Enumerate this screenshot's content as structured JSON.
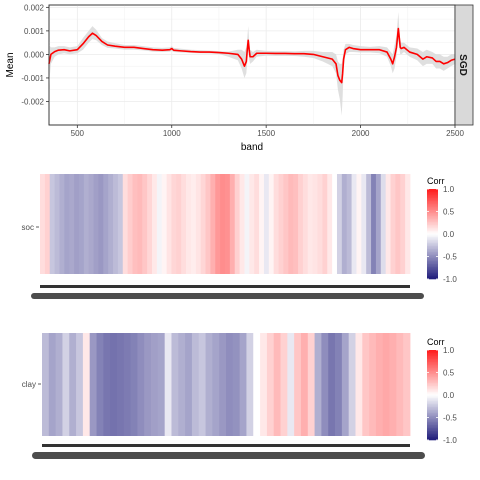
{
  "chart_data": [
    {
      "type": "line",
      "xlabel": "band",
      "ylabel": "Mean",
      "facet_label": "SGD",
      "xlim": [
        350,
        2500
      ],
      "ylim": [
        -0.003,
        0.0021
      ],
      "x_ticks": [
        500,
        1000,
        1500,
        2000,
        2500
      ],
      "x_tick_labels": [
        "500",
        "1000",
        "1500",
        "2000",
        "2500"
      ],
      "y_ticks": [
        -0.002,
        -0.001,
        0.0,
        0.001,
        0.002
      ],
      "y_tick_labels": [
        "-0.002",
        "-0.001",
        "0.000",
        "0.001",
        "0.002"
      ],
      "grid": true,
      "colors": {
        "line": "#ff0000",
        "ribbon": "#d9d9d9",
        "strip": "#d9d9d9"
      },
      "x": [
        350,
        360,
        380,
        400,
        430,
        460,
        500,
        530,
        560,
        580,
        600,
        630,
        660,
        700,
        750,
        800,
        850,
        900,
        950,
        990,
        1000,
        1010,
        1050,
        1100,
        1150,
        1200,
        1250,
        1300,
        1350,
        1370,
        1385,
        1395,
        1400,
        1405,
        1410,
        1415,
        1430,
        1450,
        1500,
        1550,
        1600,
        1650,
        1700,
        1750,
        1800,
        1850,
        1870,
        1880,
        1890,
        1900,
        1905,
        1910,
        1920,
        1940,
        1960,
        2000,
        2050,
        2100,
        2140,
        2160,
        2170,
        2180,
        2190,
        2200,
        2205,
        2210,
        2215,
        2230,
        2260,
        2300,
        2330,
        2350,
        2380,
        2400,
        2420,
        2440,
        2460,
        2480,
        2500
      ],
      "mean": [
        -0.0004,
        0.0,
        0.00012,
        0.00018,
        0.0002,
        0.00015,
        0.0002,
        0.00045,
        0.00075,
        0.0009,
        0.0008,
        0.00055,
        0.0004,
        0.00035,
        0.0003,
        0.0003,
        0.00025,
        0.0002,
        0.00018,
        0.0002,
        0.00025,
        0.00018,
        0.00015,
        0.00012,
        0.0001,
        0.0001,
        8e-05,
        5e-05,
        0.0,
        -0.0002,
        -0.0005,
        -0.0003,
        0.0002,
        0.0006,
        0.0002,
        -0.0001,
        -0.0001,
        5e-05,
        5e-05,
        4e-05,
        4e-05,
        3e-05,
        3e-05,
        0.0,
        -0.0001,
        -0.0002,
        -0.0004,
        -0.0009,
        -0.0011,
        -0.0012,
        -0.0008,
        -0.0002,
        0.0002,
        0.0003,
        0.00025,
        0.0002,
        0.0002,
        0.0002,
        0.0001,
        -0.0002,
        -0.0004,
        -0.0001,
        0.0003,
        0.0011,
        0.0007,
        0.0003,
        0.00025,
        0.0003,
        0.0001,
        0.0,
        -0.0002,
        -0.0001,
        -0.00015,
        -0.0003,
        -0.0003,
        -0.0004,
        -0.00035,
        -0.00025,
        -0.0002
      ],
      "lower": [
        -0.0013,
        -0.0004,
        -0.0001,
        0.0,
        5e-05,
        0.0,
        5e-05,
        0.0002,
        0.0005,
        0.00065,
        0.0006,
        0.0004,
        0.00028,
        0.00025,
        0.0002,
        0.0002,
        0.00017,
        0.00012,
        0.0001,
        0.00012,
        0.00015,
        0.0001,
        8e-05,
        6e-05,
        5e-05,
        4e-05,
        2e-05,
        -0.0001,
        -0.00025,
        -0.0006,
        -0.001,
        -0.0008,
        -0.0003,
        0.0002,
        -0.0002,
        -0.0004,
        -0.0003,
        -0.0001,
        -5e-05,
        -6e-05,
        -6e-05,
        -7e-05,
        -0.0001,
        -0.00015,
        -0.0003,
        -0.0005,
        -0.0008,
        -0.0015,
        -0.0019,
        -0.0026,
        -0.0018,
        -0.0006,
        0.0,
        0.0001,
        0.0001,
        8e-05,
        8e-05,
        5e-05,
        -0.0001,
        -0.0005,
        -0.0008,
        -0.0006,
        -0.0001,
        0.0006,
        0.0003,
        0.0,
        0.0,
        0.0001,
        -0.0001,
        -0.00025,
        -0.0005,
        -0.0004,
        -0.0004,
        -0.0006,
        -0.0006,
        -0.0007,
        -0.0006,
        -0.0005,
        -0.0004
      ],
      "upper": [
        0.0004,
        0.0003,
        0.0003,
        0.00035,
        0.00035,
        0.0003,
        0.00035,
        0.0007,
        0.001,
        0.0012,
        0.00105,
        0.0007,
        0.00055,
        0.00048,
        0.0004,
        0.0004,
        0.00035,
        0.0003,
        0.00028,
        0.0003,
        0.00035,
        0.00028,
        0.00024,
        0.0002,
        0.00018,
        0.00016,
        0.00014,
        0.00012,
        0.0002,
        0.0002,
        0.0001,
        0.0003,
        0.0007,
        0.0012,
        0.0006,
        0.0002,
        0.0001,
        0.0002,
        0.00015,
        0.00014,
        0.00014,
        0.00013,
        0.00015,
        0.00015,
        0.0001,
        0.0001,
        0.0,
        -0.0003,
        -0.0004,
        -0.0004,
        -0.0002,
        0.0002,
        0.00045,
        0.00045,
        0.0004,
        0.00035,
        0.00032,
        0.00035,
        0.0003,
        0.0001,
        0.0,
        0.0004,
        0.0008,
        0.0018,
        0.0011,
        0.0006,
        0.0005,
        0.0005,
        0.0003,
        0.00025,
        0.0001,
        0.0002,
        0.0001,
        0.0,
        0.0,
        -0.0001,
        -0.0001,
        0.0,
        0.0
      ]
    },
    {
      "type": "heatmap",
      "row_label": "soc",
      "legend_title": "Corr",
      "legend_ticks": [
        1.0,
        0.5,
        0.0,
        -0.5,
        -1.0
      ],
      "legend_tick_labels": [
        "1.0",
        "0.5",
        "0.0",
        "-0.5",
        "-1.0"
      ],
      "color_low": "#1e1b7a",
      "color_mid": "#ffffff",
      "color_high": "#ff1a1a",
      "value_range": [
        -1.0,
        1.0
      ],
      "values": [
        0.15,
        0.2,
        -0.25,
        -0.3,
        -0.35,
        -0.4,
        -0.38,
        -0.42,
        -0.4,
        -0.35,
        -0.38,
        -0.42,
        -0.45,
        -0.4,
        -0.35,
        -0.3,
        -0.25,
        0.15,
        0.22,
        0.28,
        0.3,
        0.25,
        0.18,
        0.1,
        -0.05,
        0.05,
        0.12,
        0.18,
        0.2,
        0.15,
        0.1,
        0.08,
        0.12,
        0.18,
        0.25,
        0.35,
        0.45,
        0.5,
        0.48,
        0.35,
        0.2,
        0.1,
        -0.05,
        0.1,
        0.15,
        0.05,
        -0.1,
        0.05,
        0.15,
        0.2,
        0.25,
        0.3,
        0.28,
        0.2,
        0.15,
        0.1,
        0.12,
        0.15,
        0.2,
        0.1,
        0.0,
        -0.2,
        -0.35,
        -0.3,
        -0.1,
        0.05,
        -0.1,
        -0.3,
        -0.55,
        -0.4,
        -0.15,
        0.1,
        0.2,
        0.25,
        0.2,
        0.1
      ]
    },
    {
      "type": "heatmap",
      "row_label": "clay",
      "legend_title": "Corr",
      "legend_ticks": [
        1.0,
        0.5,
        0.0,
        -0.5,
        -1.0
      ],
      "legend_tick_labels": [
        "1.0",
        "0.5",
        "0.0",
        "-0.5",
        "-1.0"
      ],
      "color_low": "#1e1b7a",
      "color_mid": "#ffffff",
      "color_high": "#ff1a1a",
      "value_range": [
        -1.0,
        1.0
      ],
      "values": [
        -0.3,
        -0.4,
        -0.35,
        -0.2,
        -0.35,
        -0.25,
        0.1,
        -0.45,
        -0.55,
        -0.6,
        -0.62,
        -0.6,
        -0.58,
        -0.55,
        -0.5,
        -0.45,
        -0.42,
        -0.4,
        -0.1,
        -0.3,
        -0.35,
        -0.4,
        -0.3,
        -0.25,
        -0.35,
        -0.4,
        -0.45,
        -0.5,
        -0.48,
        -0.4,
        -0.2,
        0.0,
        0.1,
        0.2,
        0.3,
        0.2,
        -0.1,
        0.25,
        0.35,
        0.2,
        -0.35,
        -0.5,
        -0.6,
        -0.55,
        -0.4,
        -0.2,
        0.1,
        0.25,
        0.3,
        0.35,
        0.38,
        0.35,
        0.3,
        0.25
      ]
    }
  ]
}
